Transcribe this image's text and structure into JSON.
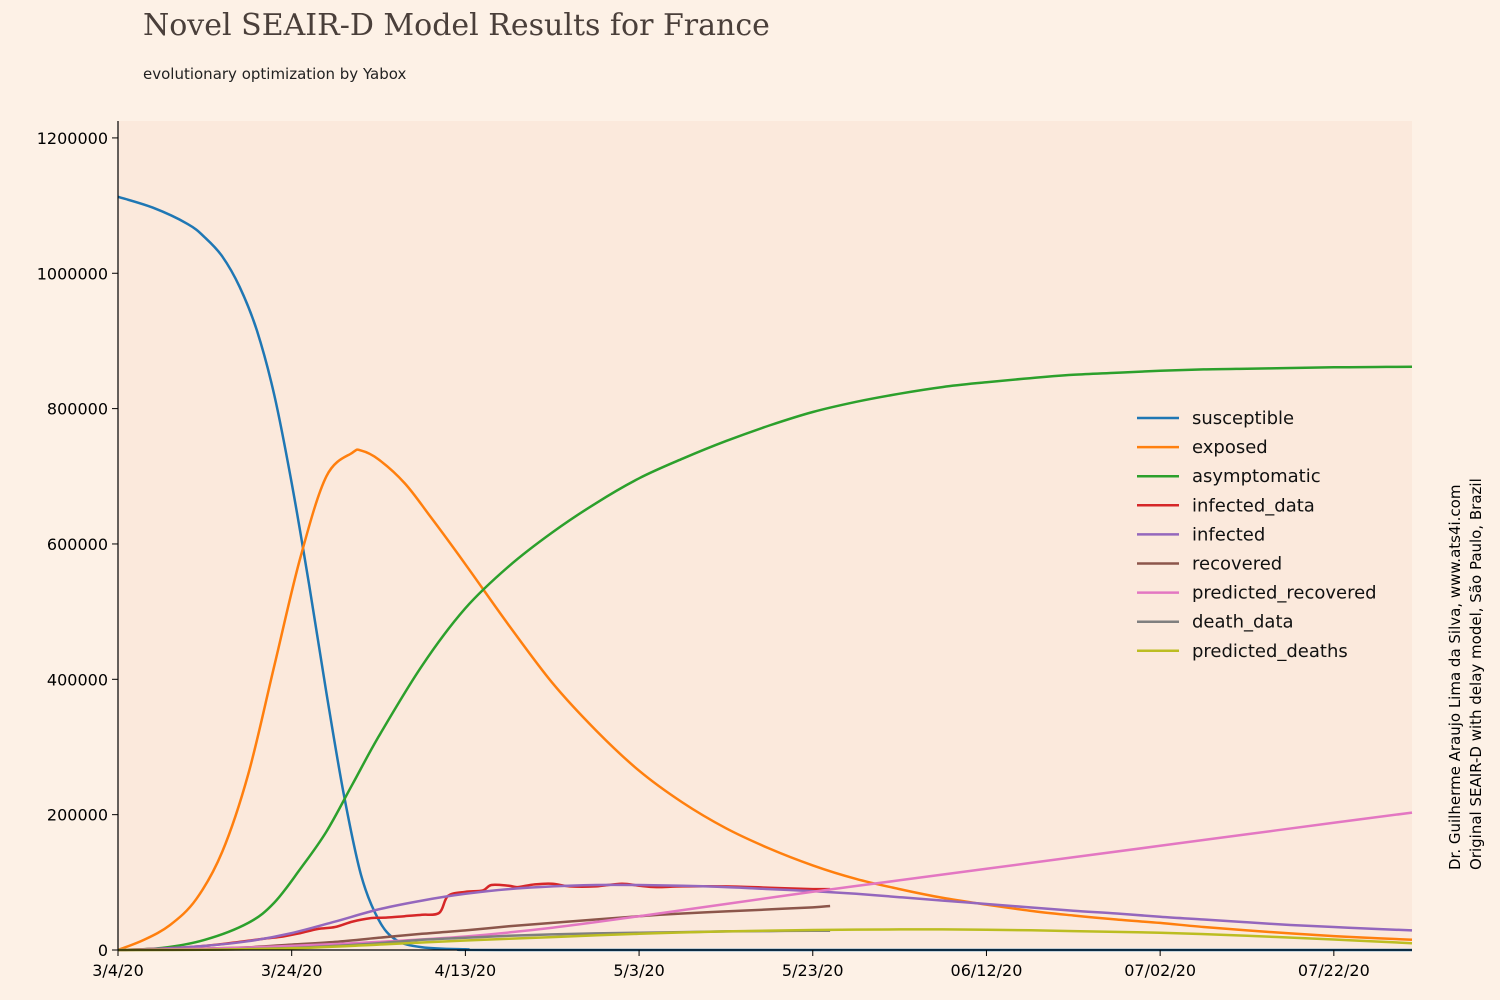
{
  "chart_data": {
    "type": "line",
    "title": "Novel SEAIR-D Model Results for France",
    "subtitle": "evolutionary optimization by Yabox",
    "credit_line1": "Dr. Guilherme Araujo Lima da Silva, www.ats4i.com",
    "credit_line2": "Original SEAIR-D with delay model, São Paulo, Brazil",
    "xlabel": "",
    "ylabel": "",
    "xlim": [
      0,
      149
    ],
    "ylim": [
      0,
      1225000
    ],
    "x_tick_labels": [
      {
        "x": 0,
        "label": "3/4/20"
      },
      {
        "x": 20,
        "label": "3/24/20"
      },
      {
        "x": 40,
        "label": "4/13/20"
      },
      {
        "x": 60,
        "label": "5/3/20"
      },
      {
        "x": 80,
        "label": "5/23/20"
      },
      {
        "x": 100,
        "label": "06/12/20"
      },
      {
        "x": 120,
        "label": "07/02/20"
      },
      {
        "x": 140,
        "label": "07/22/20"
      }
    ],
    "y_ticks": [
      0,
      200000,
      400000,
      600000,
      800000,
      1000000,
      1200000
    ],
    "grid": false,
    "legend_position": "center-right",
    "series": [
      {
        "name": "susceptible",
        "color": "#1f77b4",
        "points": [
          [
            0,
            1113000
          ],
          [
            4,
            1097000
          ],
          [
            8,
            1073000
          ],
          [
            10,
            1053000
          ],
          [
            12,
            1025000
          ],
          [
            14,
            980000
          ],
          [
            16,
            915000
          ],
          [
            18,
            820000
          ],
          [
            20,
            690000
          ],
          [
            22,
            540000
          ],
          [
            24,
            380000
          ],
          [
            26,
            230000
          ],
          [
            28,
            110000
          ],
          [
            30,
            45000
          ],
          [
            32,
            15000
          ],
          [
            35,
            4000
          ],
          [
            40,
            1000
          ],
          [
            50,
            0
          ],
          [
            149,
            0
          ]
        ]
      },
      {
        "name": "exposed",
        "color": "#ff7f0e",
        "points": [
          [
            0,
            0
          ],
          [
            3,
            15000
          ],
          [
            6,
            37000
          ],
          [
            9,
            75000
          ],
          [
            12,
            145000
          ],
          [
            15,
            260000
          ],
          [
            18,
            420000
          ],
          [
            21,
            580000
          ],
          [
            24,
            700000
          ],
          [
            27,
            735000
          ],
          [
            28,
            738000
          ],
          [
            30,
            725000
          ],
          [
            33,
            690000
          ],
          [
            36,
            640000
          ],
          [
            40,
            570000
          ],
          [
            45,
            480000
          ],
          [
            50,
            395000
          ],
          [
            55,
            325000
          ],
          [
            60,
            265000
          ],
          [
            65,
            218000
          ],
          [
            70,
            180000
          ],
          [
            75,
            150000
          ],
          [
            80,
            125000
          ],
          [
            85,
            105000
          ],
          [
            90,
            90000
          ],
          [
            95,
            77000
          ],
          [
            100,
            67000
          ],
          [
            105,
            58000
          ],
          [
            110,
            51000
          ],
          [
            115,
            45000
          ],
          [
            120,
            40000
          ],
          [
            125,
            34000
          ],
          [
            130,
            29000
          ],
          [
            135,
            24500
          ],
          [
            140,
            20500
          ],
          [
            145,
            17500
          ],
          [
            149,
            15000
          ]
        ]
      },
      {
        "name": "asymptomatic",
        "color": "#2ca02c",
        "points": [
          [
            0,
            0
          ],
          [
            5,
            3000
          ],
          [
            10,
            15000
          ],
          [
            15,
            40000
          ],
          [
            18,
            70000
          ],
          [
            21,
            120000
          ],
          [
            24,
            175000
          ],
          [
            27,
            245000
          ],
          [
            30,
            315000
          ],
          [
            35,
            420000
          ],
          [
            40,
            505000
          ],
          [
            45,
            567000
          ],
          [
            50,
            617000
          ],
          [
            55,
            660000
          ],
          [
            60,
            697000
          ],
          [
            65,
            726000
          ],
          [
            70,
            752000
          ],
          [
            75,
            775000
          ],
          [
            80,
            795000
          ],
          [
            85,
            810000
          ],
          [
            90,
            822000
          ],
          [
            95,
            832000
          ],
          [
            100,
            839000
          ],
          [
            105,
            845000
          ],
          [
            110,
            850000
          ],
          [
            115,
            853000
          ],
          [
            120,
            856000
          ],
          [
            125,
            858000
          ],
          [
            130,
            859000
          ],
          [
            135,
            860000
          ],
          [
            140,
            861000
          ],
          [
            145,
            861500
          ],
          [
            149,
            862000
          ]
        ]
      },
      {
        "name": "infected_data",
        "color": "#d62728",
        "points": [
          [
            0,
            0
          ],
          [
            5,
            2000
          ],
          [
            10,
            6000
          ],
          [
            14,
            12000
          ],
          [
            17,
            17000
          ],
          [
            19,
            20000
          ],
          [
            21,
            25000
          ],
          [
            23,
            31000
          ],
          [
            25,
            34000
          ],
          [
            27,
            42000
          ],
          [
            29,
            47000
          ],
          [
            31,
            48000
          ],
          [
            33,
            50000
          ],
          [
            35,
            52000
          ],
          [
            37,
            55000
          ],
          [
            38,
            80000
          ],
          [
            40,
            86000
          ],
          [
            42,
            88000
          ],
          [
            43,
            96000
          ],
          [
            45,
            95000
          ],
          [
            46,
            93000
          ],
          [
            48,
            97000
          ],
          [
            50,
            98000
          ],
          [
            52,
            94000
          ],
          [
            55,
            94000
          ],
          [
            58,
            98000
          ],
          [
            60,
            95000
          ],
          [
            62,
            93000
          ],
          [
            65,
            94000
          ],
          [
            70,
            94000
          ],
          [
            75,
            92000
          ],
          [
            80,
            90000
          ],
          [
            82,
            90000
          ]
        ]
      },
      {
        "name": "infected",
        "color": "#9467bd",
        "points": [
          [
            0,
            0
          ],
          [
            5,
            2000
          ],
          [
            10,
            6000
          ],
          [
            15,
            13000
          ],
          [
            20,
            25000
          ],
          [
            25,
            42000
          ],
          [
            30,
            60000
          ],
          [
            35,
            73000
          ],
          [
            40,
            83000
          ],
          [
            45,
            90000
          ],
          [
            50,
            94000
          ],
          [
            55,
            96000
          ],
          [
            60,
            96000
          ],
          [
            65,
            95000
          ],
          [
            70,
            93000
          ],
          [
            75,
            90000
          ],
          [
            80,
            87000
          ],
          [
            85,
            83000
          ],
          [
            90,
            78000
          ],
          [
            95,
            73000
          ],
          [
            100,
            68000
          ],
          [
            105,
            63000
          ],
          [
            110,
            58000
          ],
          [
            115,
            54000
          ],
          [
            120,
            49000
          ],
          [
            125,
            45000
          ],
          [
            130,
            41000
          ],
          [
            135,
            37000
          ],
          [
            140,
            34000
          ],
          [
            145,
            31000
          ],
          [
            149,
            29000
          ]
        ]
      },
      {
        "name": "recovered",
        "color": "#8c564b",
        "points": [
          [
            0,
            0
          ],
          [
            10,
            2000
          ],
          [
            15,
            4000
          ],
          [
            20,
            8000
          ],
          [
            25,
            12000
          ],
          [
            30,
            18000
          ],
          [
            35,
            24000
          ],
          [
            40,
            29000
          ],
          [
            45,
            35000
          ],
          [
            50,
            40000
          ],
          [
            55,
            45000
          ],
          [
            60,
            50000
          ],
          [
            65,
            54000
          ],
          [
            70,
            57000
          ],
          [
            75,
            60000
          ],
          [
            80,
            63000
          ],
          [
            82,
            65000
          ]
        ]
      },
      {
        "name": "predicted_recovered",
        "color": "#e377c2",
        "points": [
          [
            0,
            0
          ],
          [
            10,
            2000
          ],
          [
            20,
            6000
          ],
          [
            30,
            12000
          ],
          [
            40,
            20000
          ],
          [
            50,
            33000
          ],
          [
            60,
            50000
          ],
          [
            70,
            68000
          ],
          [
            80,
            86000
          ],
          [
            90,
            103000
          ],
          [
            100,
            120000
          ],
          [
            110,
            137000
          ],
          [
            120,
            154000
          ],
          [
            130,
            171000
          ],
          [
            140,
            188000
          ],
          [
            149,
            203000
          ]
        ]
      },
      {
        "name": "death_data",
        "color": "#7f7f7f",
        "points": [
          [
            0,
            0
          ],
          [
            10,
            500
          ],
          [
            20,
            3000
          ],
          [
            25,
            6000
          ],
          [
            30,
            10000
          ],
          [
            35,
            15000
          ],
          [
            40,
            18000
          ],
          [
            45,
            21000
          ],
          [
            50,
            23000
          ],
          [
            55,
            24500
          ],
          [
            60,
            25500
          ],
          [
            65,
            26500
          ],
          [
            70,
            27500
          ],
          [
            75,
            28000
          ],
          [
            80,
            28500
          ],
          [
            82,
            28500
          ]
        ]
      },
      {
        "name": "predicted_deaths",
        "color": "#bcbd22",
        "points": [
          [
            0,
            0
          ],
          [
            10,
            500
          ],
          [
            20,
            2500
          ],
          [
            30,
            8000
          ],
          [
            40,
            14000
          ],
          [
            50,
            19000
          ],
          [
            60,
            24000
          ],
          [
            70,
            27500
          ],
          [
            80,
            29500
          ],
          [
            90,
            30500
          ],
          [
            100,
            30000
          ],
          [
            110,
            28000
          ],
          [
            120,
            25500
          ],
          [
            130,
            21000
          ],
          [
            140,
            15500
          ],
          [
            149,
            10000
          ]
        ]
      }
    ]
  }
}
